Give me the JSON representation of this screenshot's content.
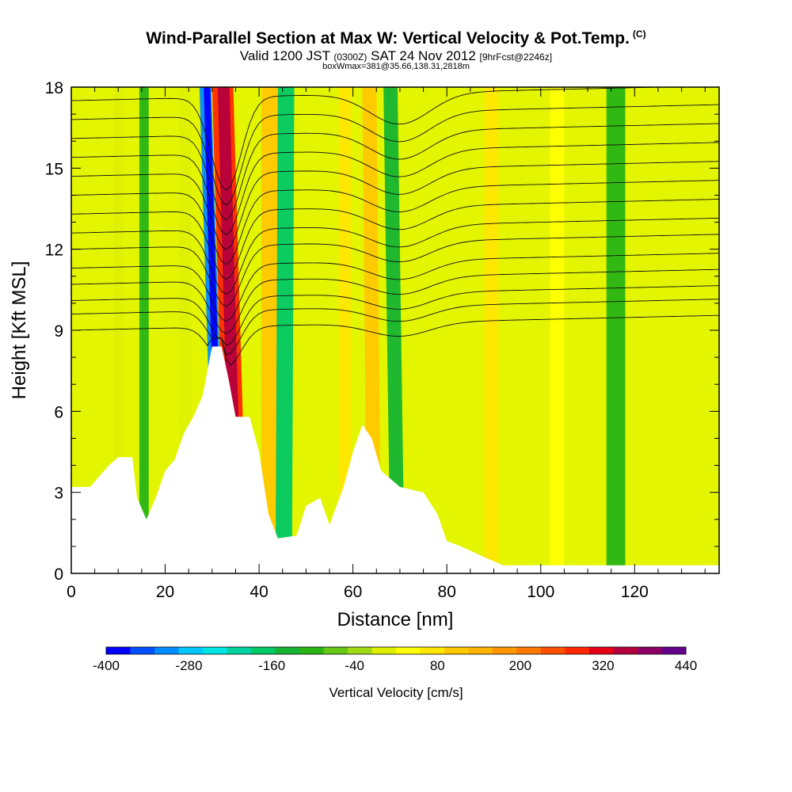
{
  "header": {
    "title": "Wind-Parallel Section at Max W: Vertical Velocity & Pot.Temp.",
    "title_mark": "(C)",
    "subtitle_a": "Valid 1200 JST",
    "subtitle_b": "(0300Z)",
    "subtitle_c": "SAT 24 Nov 2012",
    "subtitle_d": "[9hrFcst@2246z]",
    "info": "boxWmax=381@35.66,138.31,2818m"
  },
  "chart_data": {
    "type": "heatmap",
    "xlabel": "Distance [nm]",
    "ylabel": "Height [Kft MSL]",
    "xlim": [
      0,
      138
    ],
    "ylim": [
      0,
      18
    ],
    "x_ticks": [
      0,
      20,
      40,
      60,
      80,
      100,
      120
    ],
    "y_ticks": [
      0,
      3,
      6,
      9,
      12,
      15,
      18
    ],
    "colorbar": {
      "title": "Vertical Velocity [cm/s]",
      "min": -400,
      "max": 440,
      "step": 40,
      "tick_values": [
        -400,
        -280,
        -160,
        -40,
        80,
        200,
        320,
        440
      ],
      "colors": [
        "#0000ff",
        "#0050ff",
        "#008cff",
        "#00c8ff",
        "#00e6e6",
        "#00d2a0",
        "#00c864",
        "#14b432",
        "#28b414",
        "#64c814",
        "#a0dc14",
        "#dcf000",
        "#ffff00",
        "#ffe600",
        "#ffc800",
        "#ffb400",
        "#ff9600",
        "#ff7800",
        "#ff5000",
        "#ff2800",
        "#e60014",
        "#b4003c",
        "#8c0064",
        "#64008c"
      ]
    },
    "terrain": [
      [
        0,
        3.2
      ],
      [
        4,
        3.2
      ],
      [
        6,
        3.6
      ],
      [
        8,
        4.0
      ],
      [
        10,
        4.3
      ],
      [
        13,
        4.3
      ],
      [
        14,
        2.8
      ],
      [
        16,
        2.0
      ],
      [
        18,
        2.8
      ],
      [
        20,
        3.8
      ],
      [
        22,
        4.2
      ],
      [
        24,
        5.2
      ],
      [
        26,
        5.8
      ],
      [
        28,
        6.6
      ],
      [
        30,
        8.4
      ],
      [
        32,
        8.4
      ],
      [
        33.5,
        7.2
      ],
      [
        35,
        5.8
      ],
      [
        38,
        5.8
      ],
      [
        40,
        4.5
      ],
      [
        42,
        2.2
      ],
      [
        44,
        1.3
      ],
      [
        48,
        1.4
      ],
      [
        50,
        2.5
      ],
      [
        53,
        2.8
      ],
      [
        55,
        1.8
      ],
      [
        58,
        3.2
      ],
      [
        60,
        4.5
      ],
      [
        62,
        5.5
      ],
      [
        64,
        5.0
      ],
      [
        66,
        3.8
      ],
      [
        70,
        3.2
      ],
      [
        75,
        3.0
      ],
      [
        78,
        2.2
      ],
      [
        80,
        1.2
      ],
      [
        83,
        1.0
      ],
      [
        88,
        0.6
      ],
      [
        92,
        0.3
      ],
      [
        138,
        0.3
      ]
    ],
    "velocity_bands": [
      {
        "x0": 33.0,
        "x1": 37.5,
        "top_shift": -3.0,
        "value": 380
      },
      {
        "x0": 34.0,
        "x1": 36.5,
        "top_shift": -2.8,
        "value": 440
      },
      {
        "x0": 30.5,
        "x1": 33.0,
        "top_shift": -3.2,
        "value": -300
      },
      {
        "x0": 31.2,
        "x1": 32.6,
        "top_shift": -3.0,
        "value": -400
      },
      {
        "x0": 40.5,
        "x1": 44.0,
        "top_shift": 0.0,
        "value": 160
      },
      {
        "x0": 9.0,
        "x1": 11.0,
        "top_shift": 0.0,
        "value": 40
      },
      {
        "x0": 23.0,
        "x1": 25.5,
        "top_shift": 0.0,
        "value": 40
      },
      {
        "x0": 57.0,
        "x1": 59.5,
        "top_shift": 0.0,
        "value": 120
      },
      {
        "x0": 63.0,
        "x1": 66.0,
        "top_shift": -1.0,
        "value": 160
      },
      {
        "x0": 88.0,
        "x1": 91.0,
        "top_shift": 0.0,
        "value": 120
      },
      {
        "x0": 68.0,
        "x1": 71.0,
        "top_shift": -1.5,
        "value": -120
      },
      {
        "x0": 43.5,
        "x1": 47.0,
        "top_shift": 0.5,
        "value": -160
      },
      {
        "x0": 14.5,
        "x1": 16.5,
        "top_shift": 0.0,
        "value": -80
      },
      {
        "x0": 114.0,
        "x1": 118.0,
        "top_shift": 0.0,
        "value": -80
      },
      {
        "x0": 102.0,
        "x1": 105.0,
        "top_shift": 0.0,
        "value": 80
      }
    ],
    "isentrope_levels": [
      {
        "y_left": 9.0,
        "dip": 1.0
      },
      {
        "y_left": 9.6,
        "dip": 1.1
      },
      {
        "y_left": 10.1,
        "dip": 1.2
      },
      {
        "y_left": 10.7,
        "dip": 1.3
      },
      {
        "y_left": 11.3,
        "dip": 1.4
      },
      {
        "y_left": 12.0,
        "dip": 1.5
      },
      {
        "y_left": 12.6,
        "dip": 1.6
      },
      {
        "y_left": 13.3,
        "dip": 1.7
      },
      {
        "y_left": 14.0,
        "dip": 1.8
      },
      {
        "y_left": 14.7,
        "dip": 1.9
      },
      {
        "y_left": 15.4,
        "dip": 2.0
      },
      {
        "y_left": 16.1,
        "dip": 2.1
      },
      {
        "y_left": 16.8,
        "dip": 2.2
      },
      {
        "y_left": 17.5,
        "dip": 2.3
      }
    ]
  }
}
